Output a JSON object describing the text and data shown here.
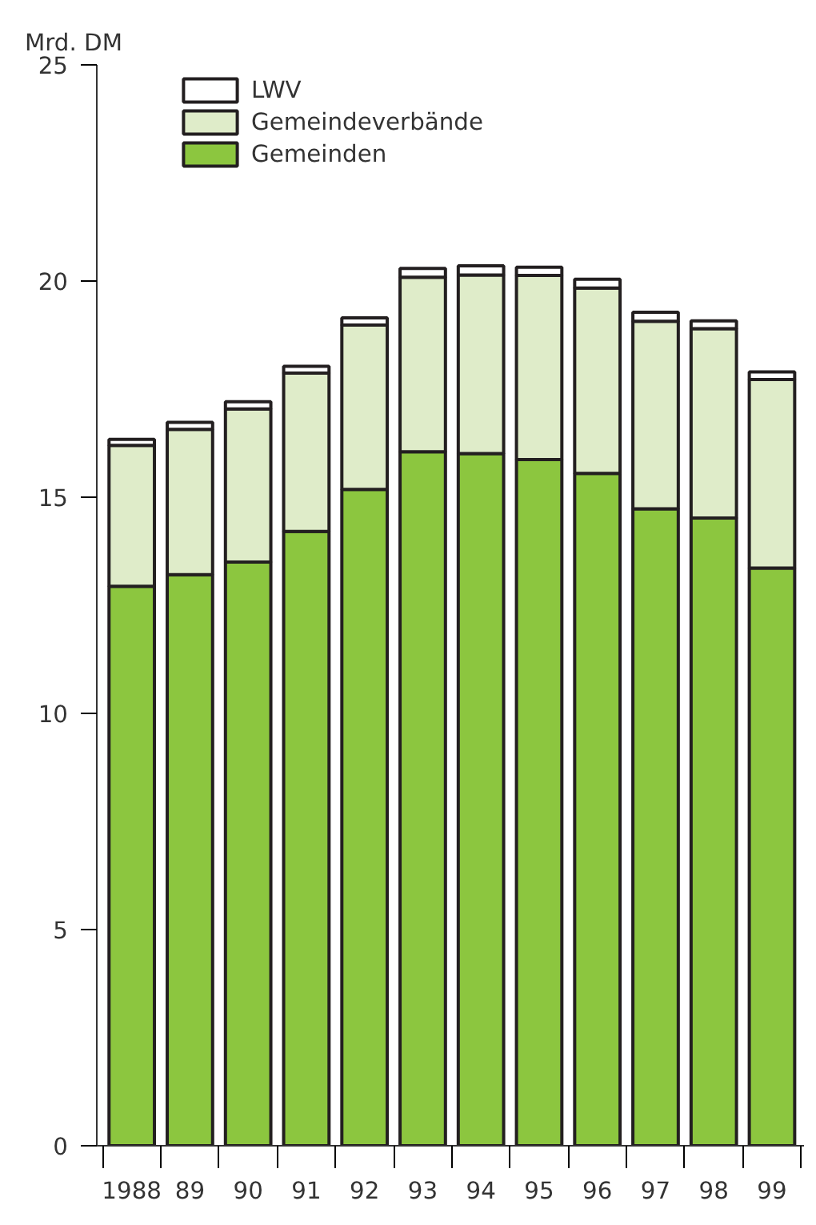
{
  "chart_data": {
    "type": "bar",
    "stacked": true,
    "ylabel": "Mrd. DM",
    "categories": [
      "1988",
      "89",
      "90",
      "91",
      "92",
      "93",
      "94",
      "95",
      "96",
      "97",
      "98",
      "99"
    ],
    "series": [
      {
        "name": "Gemeinden",
        "color": "#8cc63f",
        "values": [
          12.94,
          13.21,
          13.5,
          14.21,
          15.18,
          16.05,
          16.01,
          15.87,
          15.55,
          14.73,
          14.52,
          13.36
        ]
      },
      {
        "name": "Gemeindeverbände",
        "color": "#dfecc9",
        "values": [
          3.26,
          3.36,
          3.54,
          3.66,
          3.8,
          4.04,
          4.13,
          4.26,
          4.29,
          4.34,
          4.38,
          4.36
        ]
      },
      {
        "name": "LWV",
        "color": "#ffffff",
        "values": [
          0.14,
          0.16,
          0.17,
          0.16,
          0.17,
          0.2,
          0.21,
          0.19,
          0.2,
          0.21,
          0.18,
          0.18
        ]
      }
    ],
    "ylim": [
      0,
      25
    ],
    "yticks": [
      0,
      5,
      10,
      15,
      20,
      25
    ],
    "grid": false,
    "legend": "top left"
  }
}
